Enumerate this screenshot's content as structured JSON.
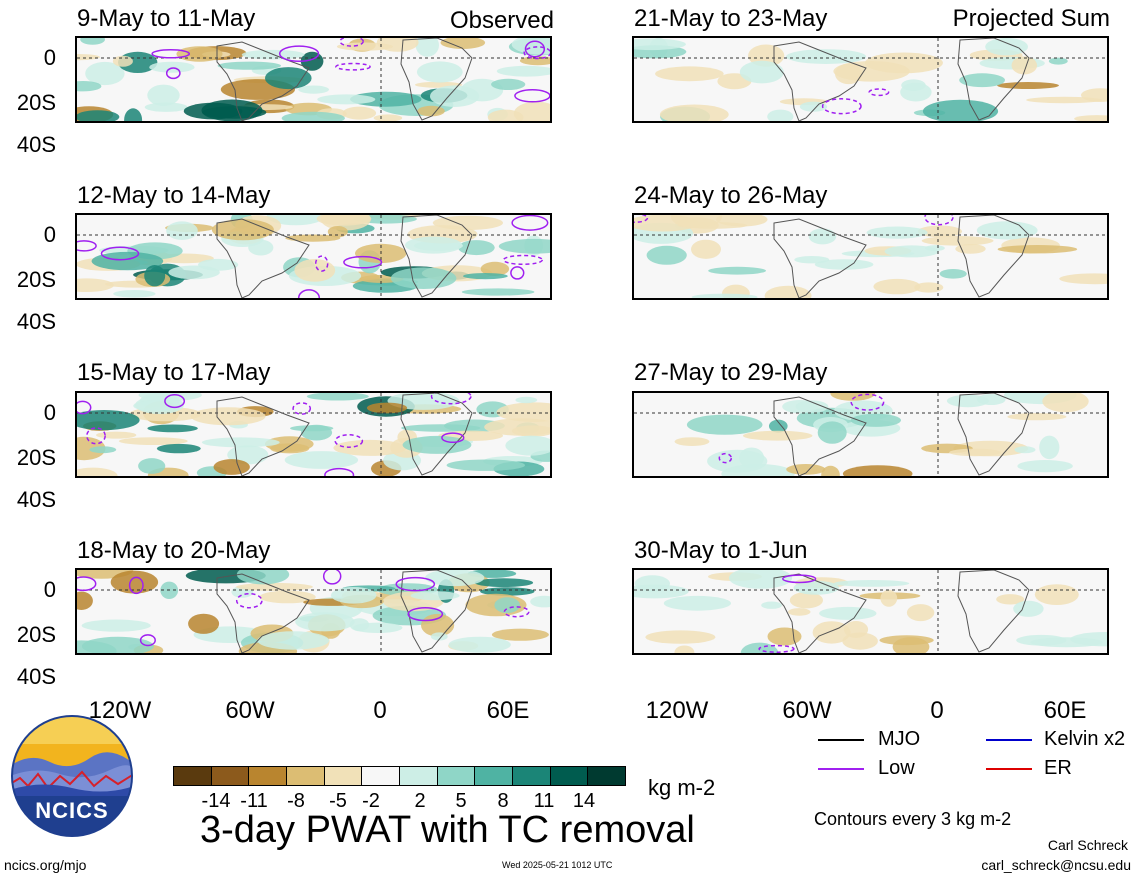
{
  "panels_left": [
    {
      "title": "9-May to 11-May",
      "tag": "Observed"
    },
    {
      "title": "12-May to 14-May",
      "tag": ""
    },
    {
      "title": "15-May to 17-May",
      "tag": ""
    },
    {
      "title": "18-May to 20-May",
      "tag": ""
    }
  ],
  "panels_right": [
    {
      "title": "21-May to 23-May",
      "tag": "Projected Sum"
    },
    {
      "title": "24-May to 26-May",
      "tag": ""
    },
    {
      "title": "27-May to 29-May",
      "tag": ""
    },
    {
      "title": "30-May to 1-Jun",
      "tag": ""
    }
  ],
  "y_ticks": [
    "0",
    "20S",
    "40S"
  ],
  "x_ticks": [
    "120W",
    "60W",
    "0",
    "60E"
  ],
  "legend": {
    "mjo": {
      "label": "MJO",
      "color": "#000000"
    },
    "kelvin": {
      "label": "Kelvin x2",
      "color": "#0000cc"
    },
    "low": {
      "label": "Low",
      "color": "#a020f0"
    },
    "er": {
      "label": "ER",
      "color": "#dd0000"
    },
    "contours_note": "Contours every 3 kg m-2"
  },
  "colorbar": {
    "colors": [
      "#5a3a0e",
      "#8c5a1c",
      "#b9852f",
      "#dcbd73",
      "#f1e1b8",
      "#f7f7f7",
      "#cdeee6",
      "#8fd6c7",
      "#4fb3a3",
      "#1b8577",
      "#005c4f",
      "#003a30"
    ],
    "ticks": [
      "-14",
      "-11",
      "-8",
      "-5",
      "-2",
      "2",
      "5",
      "8",
      "11",
      "14"
    ],
    "unit": "kg m-2"
  },
  "main_title": "3-day PWAT with TC removal",
  "logo_text": "NCICS",
  "footer": {
    "url": "ncics.org/mjo",
    "timestamp": "Wed 2025-05-21 1012 UTC",
    "author": "Carl Schreck",
    "email": "carl_schreck@ncsu.edu"
  }
}
